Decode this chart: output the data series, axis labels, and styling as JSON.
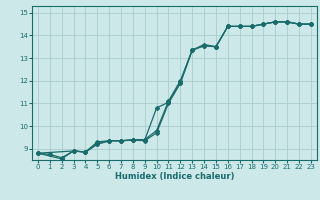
{
  "title": "",
  "xlabel": "Humidex (Indice chaleur)",
  "background_color": "#cce8e8",
  "grid_color": "#aacccc",
  "line_color": "#1a6b6b",
  "xlim": [
    -0.5,
    23.5
  ],
  "ylim": [
    8.5,
    15.3
  ],
  "yticks": [
    9,
    10,
    11,
    12,
    13,
    14,
    15
  ],
  "xticks": [
    0,
    1,
    2,
    3,
    4,
    5,
    6,
    7,
    8,
    9,
    10,
    11,
    12,
    13,
    14,
    15,
    16,
    17,
    18,
    19,
    20,
    21,
    22,
    23
  ],
  "series": [
    {
      "x": [
        0,
        1,
        2,
        3,
        4,
        5,
        6,
        7,
        8,
        9,
        10,
        11,
        12,
        13,
        14,
        15,
        16,
        17,
        18,
        19,
        20,
        21,
        22,
        23
      ],
      "y": [
        8.8,
        8.75,
        8.6,
        8.9,
        8.85,
        9.3,
        9.35,
        9.35,
        9.4,
        9.4,
        9.8,
        11.1,
        12.0,
        13.35,
        13.6,
        13.5,
        14.4,
        14.4,
        14.4,
        14.5,
        14.6,
        14.6,
        14.5,
        14.5
      ]
    },
    {
      "x": [
        0,
        2,
        3,
        4,
        5,
        6,
        7,
        8,
        9,
        10,
        11,
        12,
        13,
        14,
        15,
        16,
        17,
        18,
        19,
        20,
        21,
        22,
        23
      ],
      "y": [
        8.8,
        8.55,
        8.9,
        8.85,
        9.2,
        9.35,
        9.35,
        9.38,
        9.38,
        10.8,
        11.05,
        11.9,
        13.35,
        13.55,
        13.5,
        14.4,
        14.4,
        14.4,
        14.5,
        14.6,
        14.6,
        14.5,
        14.5
      ]
    },
    {
      "x": [
        0,
        3,
        4,
        5,
        6,
        7,
        8,
        9,
        10,
        11,
        12,
        13,
        14,
        15,
        16,
        17,
        18,
        19,
        20,
        21,
        22,
        23
      ],
      "y": [
        8.8,
        8.9,
        8.85,
        9.2,
        9.35,
        9.35,
        9.38,
        9.35,
        9.7,
        11.0,
        11.9,
        13.35,
        13.55,
        13.5,
        14.4,
        14.4,
        14.4,
        14.5,
        14.6,
        14.6,
        14.5,
        14.5
      ]
    }
  ]
}
